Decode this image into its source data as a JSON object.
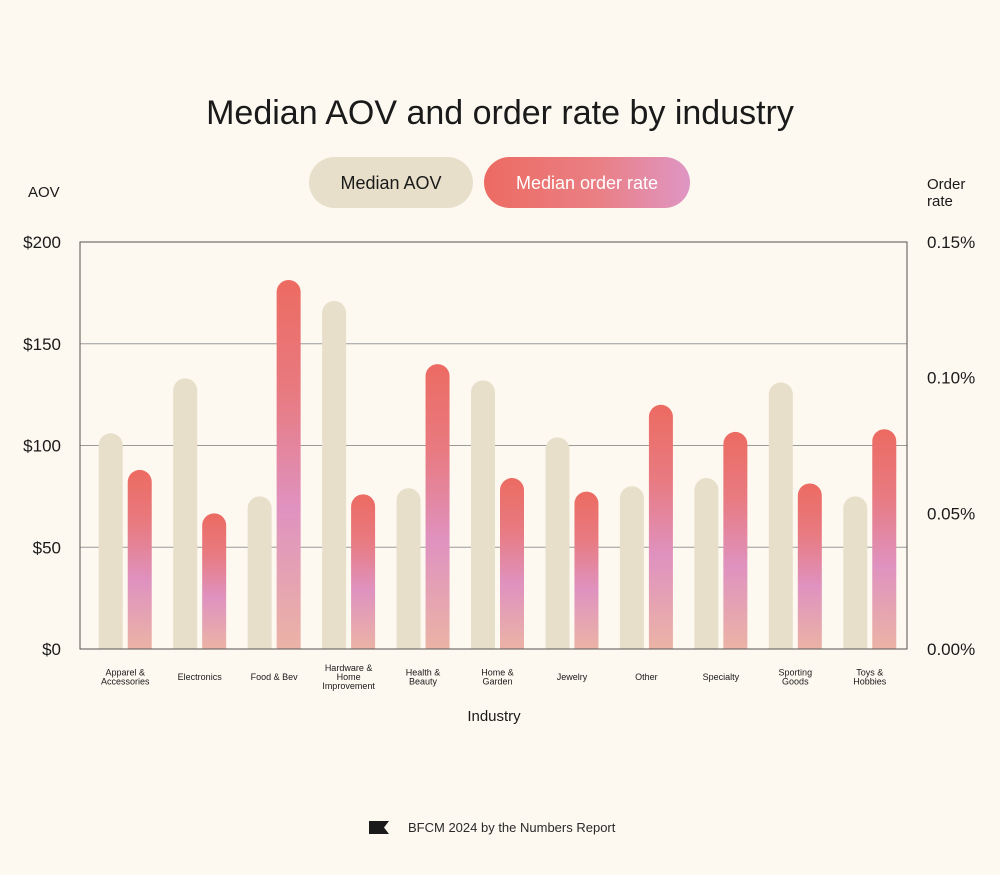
{
  "chart_data": {
    "type": "bar",
    "title": "Median AOV and order rate by industry",
    "xlabel": "Industry",
    "ylabel_left": "AOV",
    "ylabel_right": [
      "Order",
      "rate"
    ],
    "ylim_left": [
      0,
      200
    ],
    "ylim_right": [
      0,
      0.15
    ],
    "yticks_left": [
      "$0",
      "$50",
      "$100",
      "$150",
      "$200"
    ],
    "yticks_right": [
      "0.00%",
      "0.05%",
      "0.10%",
      "0.15%"
    ],
    "legend_placement": "top-center",
    "categories": [
      [
        "Apparel &",
        "Accessories"
      ],
      [
        "Electronics"
      ],
      [
        "Food & Bev"
      ],
      [
        "Hardware &",
        "Home",
        "Improvement"
      ],
      [
        "Health &",
        "Beauty"
      ],
      [
        "Home &",
        "Garden"
      ],
      [
        "Jewelry"
      ],
      [
        "Other"
      ],
      [
        "Specialty"
      ],
      [
        "Sporting",
        "Goods"
      ],
      [
        "Toys &",
        "Hobbies"
      ]
    ],
    "series": [
      {
        "name": "Median AOV",
        "axis": "left",
        "unit": "$",
        "color": "#e8dfca",
        "values": [
          106,
          133,
          75,
          171,
          79,
          132,
          104,
          80,
          84,
          131,
          75
        ]
      },
      {
        "name": "Median order rate",
        "axis": "right",
        "unit": "%",
        "color_top": "#ec6b62",
        "color_mid": "#df92bf",
        "color_bottom": "#ebb3a6",
        "values": [
          0.066,
          0.05,
          0.136,
          0.057,
          0.105,
          0.063,
          0.058,
          0.09,
          0.08,
          0.061,
          0.081
        ]
      }
    ]
  },
  "footer": {
    "text": "BFCM 2024 by the Numbers Report",
    "icon": "flag-icon"
  }
}
